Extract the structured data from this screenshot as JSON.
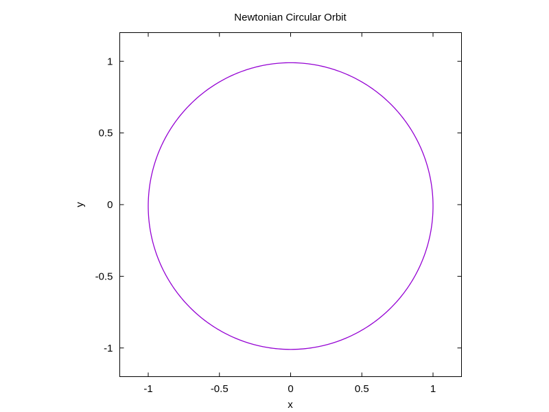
{
  "chart_data": {
    "type": "line",
    "title": "Newtonian Circular Orbit",
    "xlabel": "x",
    "ylabel": "y",
    "xlim": [
      -1.2,
      1.2
    ],
    "ylim": [
      -1.2,
      1.2
    ],
    "x_ticks": [
      -1,
      -0.5,
      0,
      0.5,
      1
    ],
    "x_tick_labels": [
      "-1",
      "-0.5",
      "0",
      "0.5",
      "1"
    ],
    "y_ticks": [
      -1,
      -0.5,
      0,
      0.5,
      1
    ],
    "y_tick_labels": [
      "-1",
      "-0.5",
      "0",
      "0.5",
      "1"
    ],
    "grid": false,
    "legend": "none",
    "series": [
      {
        "color": "#9400d3",
        "shape": "circle",
        "center": [
          0,
          -0.01
        ],
        "radius": 1.0
      }
    ]
  }
}
